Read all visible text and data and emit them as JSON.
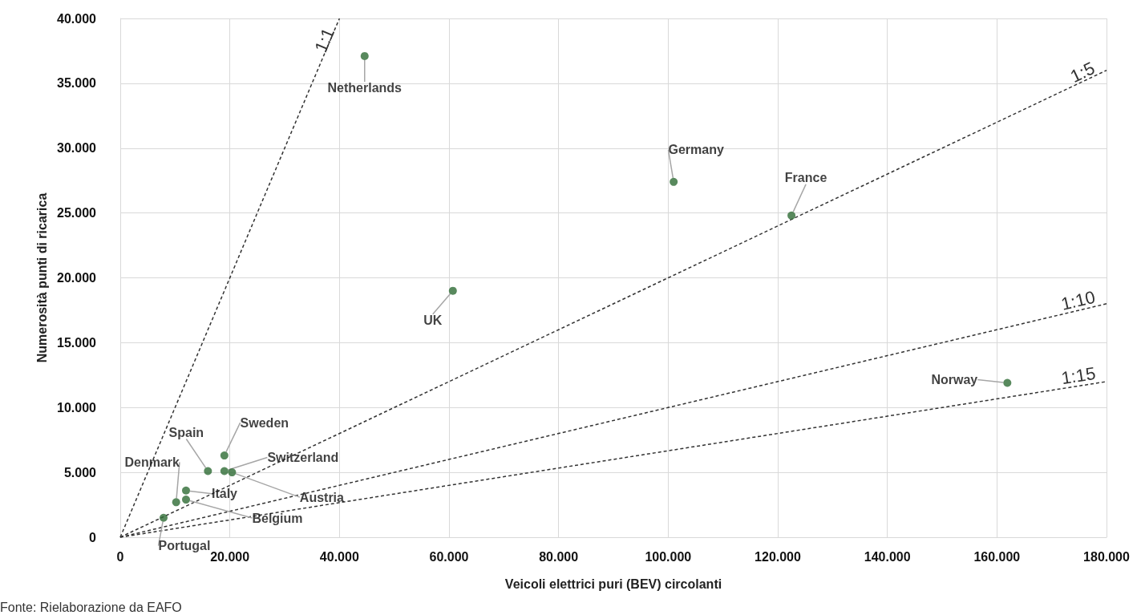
{
  "chart_data": {
    "type": "scatter",
    "xlabel": "Veicoli elettrici puri (BEV) circolanti",
    "ylabel": "Numerosità punti di ricarica",
    "series": [
      {
        "marker": "circle",
        "color": "#2e6b35",
        "x": [
          44600,
          101000,
          122500,
          60700,
          161900,
          19000,
          16000,
          19000,
          20400,
          12000,
          12000,
          10200,
          7900
        ],
        "values": [
          37100,
          27400,
          24800,
          19000,
          11900,
          6300,
          5100,
          5100,
          5000,
          3600,
          2900,
          2700,
          1500
        ]
      },
      {
        "type": "line",
        "name": "1:1",
        "color": "#333333",
        "line_style": "dashed",
        "x": [
          0,
          40000
        ],
        "values": [
          0,
          40000
        ]
      },
      {
        "type": "line",
        "name": "1:5",
        "color": "#333333",
        "line_style": "dashed",
        "x": [
          0,
          180000
        ],
        "values": [
          0,
          36000
        ]
      },
      {
        "type": "line",
        "name": "1:10",
        "color": "#333333",
        "line_style": "dashed",
        "x": [
          0,
          180000
        ],
        "values": [
          0,
          18000
        ]
      },
      {
        "type": "line",
        "name": "1:15",
        "color": "#333333",
        "line_style": "dashed",
        "x": [
          0,
          180000
        ],
        "values": [
          0,
          12000
        ]
      }
    ],
    "xlim": [
      0,
      180000
    ],
    "xticks": [
      0,
      {
        "value": 20000,
        "label": "20.000"
      },
      {
        "value": 40000,
        "label": "40.000"
      },
      {
        "value": 60000,
        "label": "60.000"
      },
      {
        "value": 80000,
        "label": "80.000"
      },
      {
        "value": 100000,
        "label": "100.000"
      },
      {
        "value": 120000,
        "label": "120.000"
      },
      {
        "value": 140000,
        "label": "140.000"
      },
      {
        "value": 160000,
        "label": "160.000"
      },
      {
        "value": 180000,
        "label": "180.000"
      }
    ],
    "ylim": [
      0,
      40000
    ],
    "yticks": [
      0,
      {
        "value": 5000,
        "label": "5.000"
      },
      {
        "value": 10000,
        "label": "10.000"
      },
      {
        "value": 15000,
        "label": "15.000"
      },
      {
        "value": 20000,
        "label": "20.000"
      },
      {
        "value": 25000,
        "label": "25.000"
      },
      {
        "value": 30000,
        "label": "30.000"
      },
      {
        "value": 35000,
        "label": "35.000"
      },
      {
        "value": 40000,
        "label": "40.000"
      }
    ],
    "grid": true,
    "legend": false,
    "annotations": [
      {
        "text": "Netherlands",
        "x": 44600,
        "y": 37100
      },
      {
        "text": "Germany",
        "x": 101000,
        "y": 27400
      },
      {
        "text": "France",
        "x": 122500,
        "y": 24800
      },
      {
        "text": "UK",
        "x": 60700,
        "y": 19000
      },
      {
        "text": "Norway",
        "x": 161900,
        "y": 11900
      },
      {
        "text": "Sweden",
        "x": 19000,
        "y": 6300
      },
      {
        "text": "Spain",
        "x": 16000,
        "y": 5100
      },
      {
        "text": "Switzerland",
        "x": 19000,
        "y": 5100
      },
      {
        "text": "Austria",
        "x": 20400,
        "y": 5000
      },
      {
        "text": "Italy",
        "x": 12000,
        "y": 3600
      },
      {
        "text": "Belgium",
        "x": 12000,
        "y": 2900
      },
      {
        "text": "Denmark",
        "x": 10200,
        "y": 2700
      },
      {
        "text": "Portugal",
        "x": 7900,
        "y": 1500
      },
      "Fonte: Rielaborazione da EAFO"
    ]
  }
}
